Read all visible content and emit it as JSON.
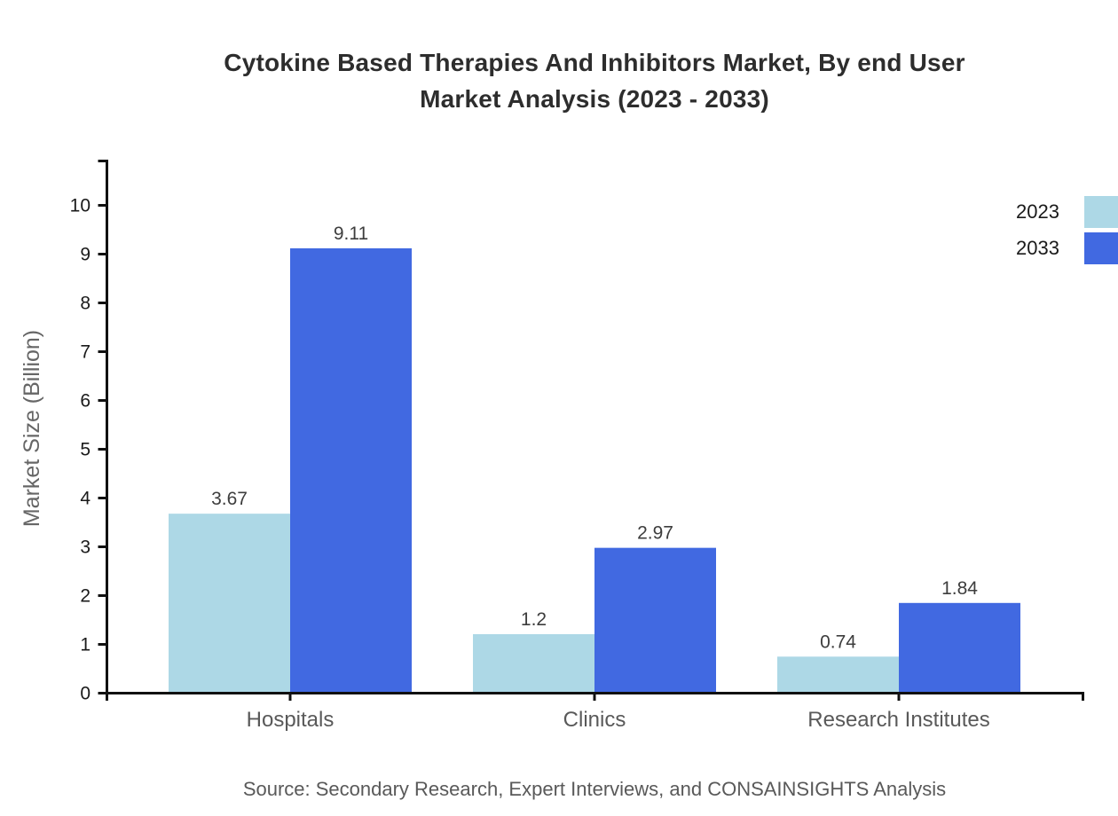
{
  "header": {
    "title_line1": "Cytokine Based Therapies And Inhibitors Market, By end User",
    "title_line2": "Market Analysis (2023 - 2033)"
  },
  "source": "Source: Secondary Research, Expert Interviews, and CONSAINSIGHTS Analysis",
  "colors": {
    "axis": "#111111",
    "tick_text": "#1a1a1a",
    "value_text": "#3d3d3d",
    "muted_text": "#595959",
    "title_text": "#2d2d2d",
    "ylabel_text": "#666666",
    "series_2023": "#ADD8E6",
    "series_2033": "#4169E1"
  },
  "chart_data": {
    "type": "bar",
    "title": "Cytokine Based Therapies And Inhibitors Market, By end User Market Analysis (2023 - 2033)",
    "categories": [
      "Hospitals",
      "Clinics",
      "Research Institutes"
    ],
    "series": [
      {
        "name": "2023",
        "color": "#ADD8E6",
        "values": [
          3.67,
          1.2,
          0.74
        ]
      },
      {
        "name": "2033",
        "color": "#4169E1",
        "values": [
          9.11,
          2.97,
          1.84
        ]
      }
    ],
    "xlabel": "",
    "ylabel": "Market Size (Billion)",
    "ylim": [
      0,
      10
    ],
    "yticks": [
      0,
      1,
      2,
      3,
      4,
      5,
      6,
      7,
      8,
      9,
      10
    ],
    "grid": false,
    "legend_position": "top-right",
    "value_labels_shown": true
  }
}
